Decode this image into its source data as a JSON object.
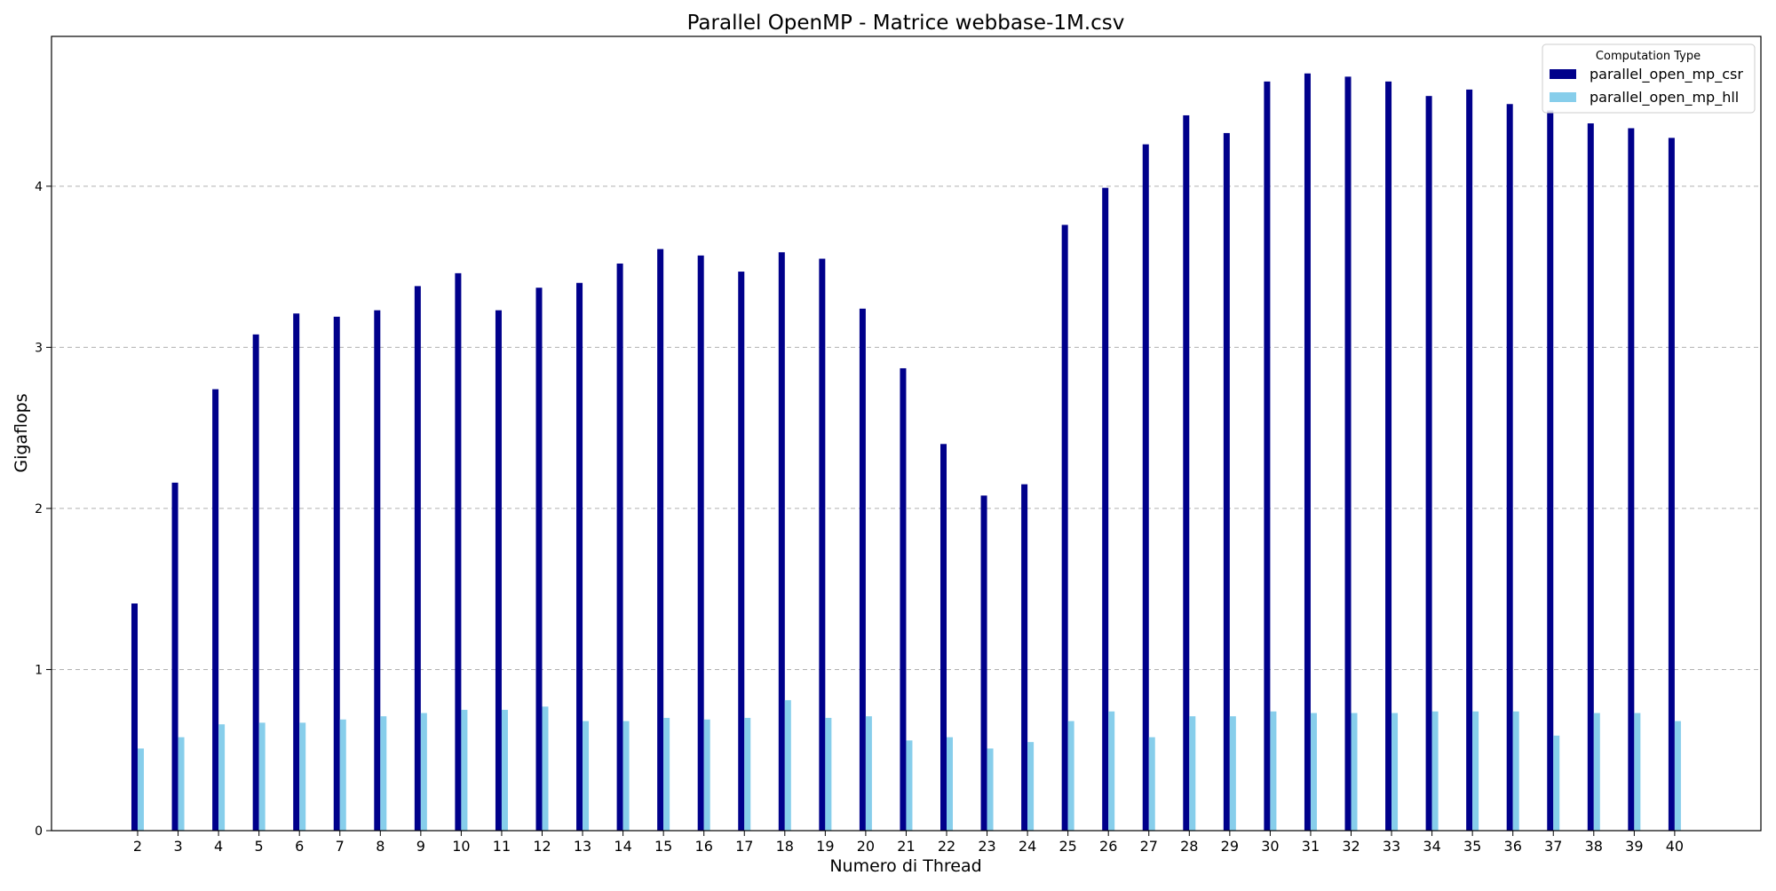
{
  "chart_data": {
    "type": "bar",
    "title": "Parallel OpenMP - Matrice webbase-1M.csv",
    "xlabel": "Numero di Thread",
    "ylabel": "Gigaflops",
    "ylim": [
      0,
      4.93
    ],
    "yticks": [
      0,
      1,
      2,
      3,
      4
    ],
    "grid": "y-dashed",
    "legend": {
      "title": "Computation Type",
      "placement": "top-right"
    },
    "categories": [
      "2",
      "3",
      "4",
      "5",
      "6",
      "7",
      "8",
      "9",
      "10",
      "11",
      "12",
      "13",
      "14",
      "15",
      "16",
      "17",
      "18",
      "19",
      "20",
      "21",
      "22",
      "23",
      "24",
      "25",
      "26",
      "27",
      "28",
      "29",
      "30",
      "31",
      "32",
      "33",
      "34",
      "35",
      "36",
      "37",
      "38",
      "39",
      "40"
    ],
    "series": [
      {
        "name": "parallel_open_mp_csr",
        "color": "#00008b",
        "values": [
          1.41,
          2.16,
          2.74,
          3.08,
          3.21,
          3.19,
          3.23,
          3.38,
          3.46,
          3.23,
          3.37,
          3.4,
          3.52,
          3.61,
          3.57,
          3.47,
          3.59,
          3.55,
          3.24,
          2.87,
          2.4,
          2.08,
          2.15,
          3.76,
          3.99,
          4.26,
          4.44,
          4.33,
          4.65,
          4.7,
          4.68,
          4.65,
          4.56,
          4.6,
          4.51,
          4.47,
          4.39,
          4.36,
          4.3
        ]
      },
      {
        "name": "parallel_open_mp_hll",
        "color": "#87ceeb",
        "values": [
          0.51,
          0.58,
          0.66,
          0.67,
          0.67,
          0.69,
          0.71,
          0.73,
          0.75,
          0.75,
          0.77,
          0.68,
          0.68,
          0.7,
          0.69,
          0.7,
          0.81,
          0.7,
          0.71,
          0.56,
          0.58,
          0.51,
          0.55,
          0.68,
          0.74,
          0.58,
          0.71,
          0.71,
          0.74,
          0.73,
          0.73,
          0.73,
          0.74,
          0.74,
          0.74,
          0.59,
          0.73,
          0.73,
          0.68
        ]
      }
    ]
  }
}
